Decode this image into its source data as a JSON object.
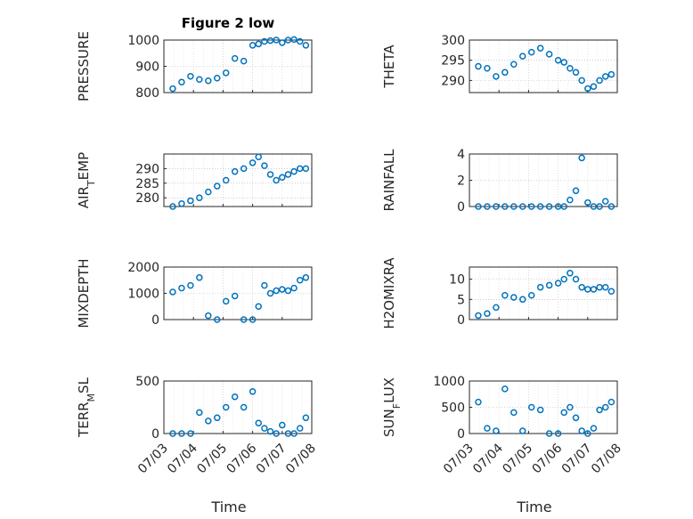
{
  "figure": {
    "title": "Figure 2 low",
    "xlabel": "Time"
  },
  "colors": {
    "marker": "#0072bd",
    "axis": "#262626",
    "grid": "#b0b0b0"
  },
  "chart_data": [
    {
      "type": "scatter",
      "ylabel": "PRESSURE",
      "ylim": [
        800,
        1000
      ],
      "yticks": [
        "1000",
        "900",
        "800"
      ],
      "xlim": [
        0,
        5
      ],
      "xticks": [
        "07/03",
        "07/04",
        "07/05",
        "07/06",
        "07/07",
        "07/08"
      ],
      "x": [
        0.3,
        0.6,
        0.9,
        1.2,
        1.5,
        1.8,
        2.1,
        2.4,
        2.7,
        3.0,
        3.2,
        3.4,
        3.6,
        3.8,
        4.0,
        4.2,
        4.4,
        4.6,
        4.8
      ],
      "y": [
        815,
        840,
        862,
        850,
        845,
        855,
        875,
        930,
        920,
        980,
        985,
        995,
        998,
        1000,
        990,
        1000,
        1002,
        995,
        980
      ]
    },
    {
      "type": "scatter",
      "ylabel": "THETA",
      "ylim": [
        287,
        300
      ],
      "yticks": [
        "300",
        "295",
        "290"
      ],
      "xlim": [
        0,
        5
      ],
      "xticks": [
        "07/03",
        "07/04",
        "07/05",
        "07/06",
        "07/07",
        "07/08"
      ],
      "x": [
        0.3,
        0.6,
        0.9,
        1.2,
        1.5,
        1.8,
        2.1,
        2.4,
        2.7,
        3.0,
        3.2,
        3.4,
        3.6,
        3.8,
        4.0,
        4.2,
        4.4,
        4.6,
        4.8
      ],
      "y": [
        293.5,
        293,
        291,
        292,
        294,
        296,
        297,
        298,
        296.5,
        295,
        294.5,
        293,
        292,
        290,
        288,
        288.5,
        290,
        291,
        291.5
      ]
    },
    {
      "type": "scatter",
      "ylabel": "AIR_TEMP",
      "ylim": [
        277,
        295
      ],
      "yticks": [
        "290",
        "285",
        "280"
      ],
      "xlim": [
        0,
        5
      ],
      "xticks": [
        "07/03",
        "07/04",
        "07/05",
        "07/06",
        "07/07",
        "07/08"
      ],
      "x": [
        0.3,
        0.6,
        0.9,
        1.2,
        1.5,
        1.8,
        2.1,
        2.4,
        2.7,
        3.0,
        3.2,
        3.4,
        3.6,
        3.8,
        4.0,
        4.2,
        4.4,
        4.6,
        4.8
      ],
      "y": [
        277,
        278,
        279,
        280,
        282,
        284,
        286,
        289,
        290,
        292,
        294,
        291,
        288,
        286,
        287,
        288,
        289,
        290,
        290
      ]
    },
    {
      "type": "scatter",
      "ylabel": "RAINFALL",
      "ylim": [
        0,
        4
      ],
      "yticks": [
        "4",
        "2",
        "0"
      ],
      "xlim": [
        0,
        5
      ],
      "xticks": [
        "07/03",
        "07/04",
        "07/05",
        "07/06",
        "07/07",
        "07/08"
      ],
      "x": [
        0.3,
        0.6,
        0.9,
        1.2,
        1.5,
        1.8,
        2.1,
        2.4,
        2.7,
        3.0,
        3.2,
        3.4,
        3.6,
        3.8,
        4.0,
        4.2,
        4.4,
        4.6,
        4.8
      ],
      "y": [
        0,
        0,
        0,
        0,
        0,
        0,
        0,
        0,
        0,
        0,
        0,
        0.5,
        1.2,
        3.7,
        0.3,
        0,
        0,
        0.4,
        0
      ]
    },
    {
      "type": "scatter",
      "ylabel": "MIXDEPTH",
      "ylim": [
        0,
        2000
      ],
      "yticks": [
        "2000",
        "1000",
        "0"
      ],
      "xlim": [
        0,
        5
      ],
      "xticks": [
        "07/03",
        "07/04",
        "07/05",
        "07/06",
        "07/07",
        "07/08"
      ],
      "x": [
        0.3,
        0.6,
        0.9,
        1.2,
        1.5,
        1.8,
        2.1,
        2.4,
        2.7,
        3.0,
        3.2,
        3.4,
        3.6,
        3.8,
        4.0,
        4.2,
        4.4,
        4.6,
        4.8
      ],
      "y": [
        1050,
        1200,
        1300,
        1600,
        150,
        0,
        700,
        900,
        0,
        0,
        500,
        1300,
        1000,
        1100,
        1150,
        1100,
        1200,
        1500,
        1600
      ]
    },
    {
      "type": "scatter",
      "ylabel": "H2OMIXRA",
      "ylim": [
        0,
        13
      ],
      "yticks": [
        "10",
        "5",
        "0"
      ],
      "xlim": [
        0,
        5
      ],
      "xticks": [
        "07/03",
        "07/04",
        "07/05",
        "07/06",
        "07/07",
        "07/08"
      ],
      "x": [
        0.3,
        0.6,
        0.9,
        1.2,
        1.5,
        1.8,
        2.1,
        2.4,
        2.7,
        3.0,
        3.2,
        3.4,
        3.6,
        3.8,
        4.0,
        4.2,
        4.4,
        4.6,
        4.8
      ],
      "y": [
        1,
        1.5,
        3,
        6,
        5.5,
        5,
        6,
        8,
        8.5,
        9,
        10,
        11.5,
        10,
        8,
        7.5,
        7.5,
        8,
        8,
        7
      ]
    },
    {
      "type": "scatter",
      "ylabel": "TERR_MSL",
      "ylim": [
        0,
        500
      ],
      "yticks": [
        "500",
        "0"
      ],
      "xlim": [
        0,
        5
      ],
      "xticks": [
        "07/03",
        "07/04",
        "07/05",
        "07/06",
        "07/07",
        "07/08"
      ],
      "x": [
        0.3,
        0.6,
        0.9,
        1.2,
        1.5,
        1.8,
        2.1,
        2.4,
        2.7,
        3.0,
        3.2,
        3.4,
        3.6,
        3.8,
        4.0,
        4.2,
        4.4,
        4.6,
        4.8
      ],
      "y": [
        0,
        0,
        0,
        200,
        120,
        150,
        250,
        350,
        250,
        400,
        100,
        50,
        20,
        0,
        80,
        0,
        0,
        50,
        150
      ]
    },
    {
      "type": "scatter",
      "ylabel": "SUN_FLUX",
      "ylim": [
        0,
        1000
      ],
      "yticks": [
        "1000",
        "500",
        "0"
      ],
      "xlim": [
        0,
        5
      ],
      "xticks": [
        "07/03",
        "07/04",
        "07/05",
        "07/06",
        "07/07",
        "07/08"
      ],
      "x": [
        0.3,
        0.6,
        0.9,
        1.2,
        1.5,
        1.8,
        2.1,
        2.4,
        2.7,
        3.0,
        3.2,
        3.4,
        3.6,
        3.8,
        4.0,
        4.2,
        4.4,
        4.6,
        4.8
      ],
      "y": [
        600,
        100,
        50,
        850,
        400,
        50,
        500,
        450,
        0,
        0,
        400,
        500,
        300,
        50,
        0,
        100,
        450,
        500,
        600
      ]
    }
  ]
}
